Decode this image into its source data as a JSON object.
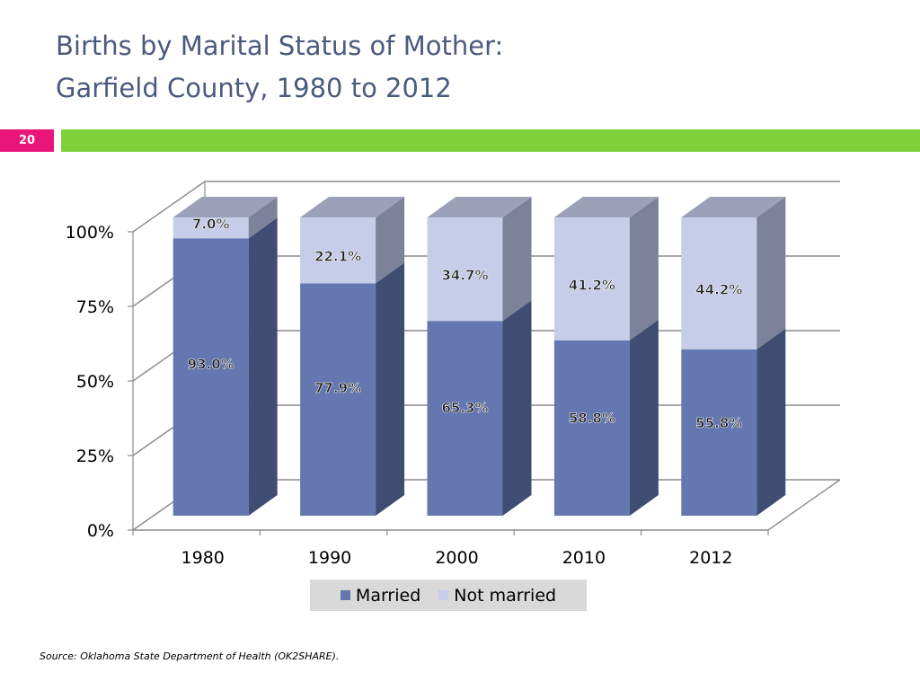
{
  "slide": {
    "title_line1": "Births by Marital Status of Mother:",
    "title_line2": "Garfield County, 1980 to 2012",
    "page_number": "20",
    "source": "Source:  Oklahoma State Department of Health (OK2SHARE)."
  },
  "colors": {
    "accent_bar": "#7fd13b",
    "page_badge": "#ea157a",
    "married": "#6477b0",
    "not_married": "#c6cde8"
  },
  "chart_data": {
    "type": "bar",
    "stacked": true,
    "three_d": true,
    "categories": [
      "1980",
      "1990",
      "2000",
      "2010",
      "2012"
    ],
    "series": [
      {
        "name": "Married",
        "values": [
          93.0,
          77.9,
          65.3,
          58.8,
          55.8
        ],
        "labels": [
          "93.0%",
          "77.9%",
          "65.3%",
          "58.8%",
          "55.8%"
        ]
      },
      {
        "name": "Not married",
        "values": [
          7.0,
          22.1,
          34.7,
          41.2,
          44.2
        ],
        "labels": [
          "7.0%",
          "22.1%",
          "34.7%",
          "41.2%",
          "44.2%"
        ]
      }
    ],
    "y_ticks": [
      "0%",
      "25%",
      "50%",
      "75%",
      "100%"
    ],
    "ylim": [
      0,
      100
    ],
    "grid": true,
    "legend_position": "bottom"
  }
}
